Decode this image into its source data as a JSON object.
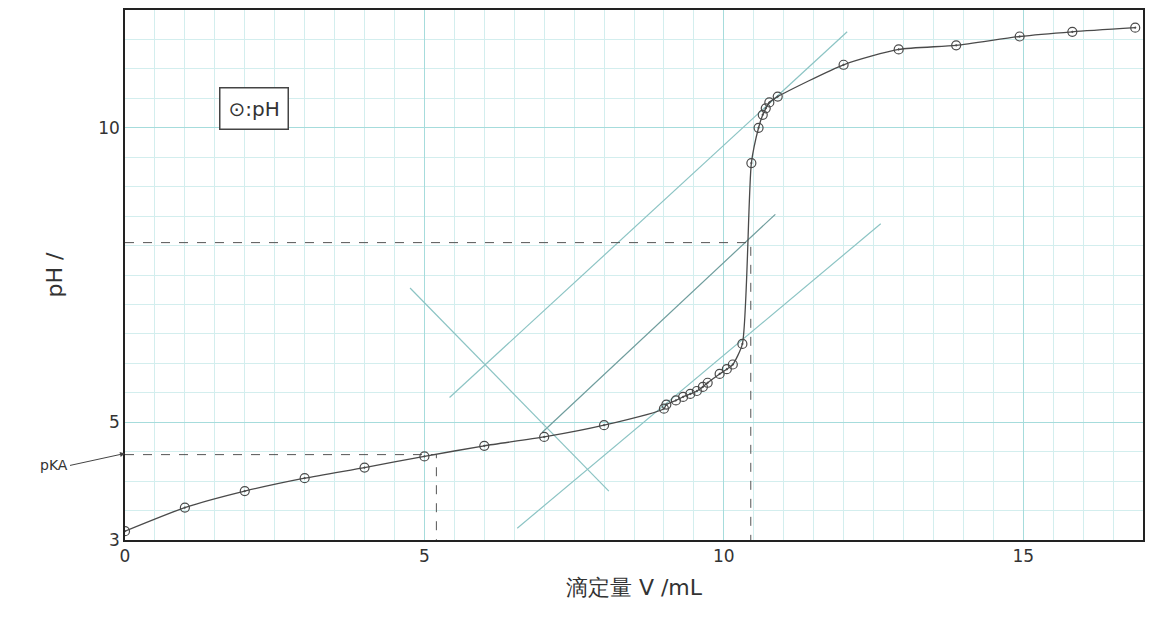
{
  "chart_data": {
    "type": "line",
    "x_label": "滴定量 V /mL",
    "y_label": "pH /",
    "x": [
      0,
      1,
      2,
      3,
      4,
      5,
      6,
      7,
      8,
      9,
      9.04,
      9.2,
      9.32,
      9.44,
      9.55,
      9.65,
      9.73,
      9.93,
      10.05,
      10.15,
      10.31,
      10.46,
      10.58,
      10.65,
      10.7,
      10.76,
      10.9,
      12,
      12.92,
      13.88,
      14.94,
      15.82,
      16.87
    ],
    "values": [
      3.15,
      3.55,
      3.83,
      4.05,
      4.23,
      4.42,
      4.6,
      4.75,
      4.95,
      5.23,
      5.3,
      5.37,
      5.43,
      5.48,
      5.53,
      5.6,
      5.67,
      5.82,
      5.9,
      5.98,
      6.33,
      9.4,
      10.0,
      10.22,
      10.33,
      10.43,
      10.53,
      11.07,
      11.33,
      11.4,
      11.55,
      11.63,
      11.7
    ],
    "color": "#4a4a4a",
    "marker": "circle-open-dot",
    "line_style": "solid",
    "xlim": [
      0,
      17
    ],
    "ylim": [
      3,
      12
    ],
    "xticks": [
      0,
      5,
      10,
      15
    ],
    "yticks": [
      3,
      5,
      10
    ],
    "grid": true,
    "reference_points": [
      {
        "x": 5.2,
        "y": 4.45
      },
      {
        "x": 10.45,
        "y": 8.05
      }
    ],
    "construction_lines": [
      {
        "x": [
          5.42,
          12.06
        ],
        "y": [
          5.42,
          11.63
        ]
      },
      {
        "x": [
          6.97,
          10.86
        ],
        "y": [
          4.83,
          8.53
        ]
      },
      {
        "x": [
          6.55,
          12.62
        ],
        "y": [
          3.2,
          8.37
        ]
      },
      {
        "x": [
          4.76,
          8.08
        ],
        "y": [
          7.28,
          3.83
        ]
      }
    ],
    "annotations": [
      {
        "text": "⊙:pH",
        "x": 2.16,
        "y": 10.33
      },
      {
        "text": "pKA",
        "x": 0,
        "y": 4.47
      }
    ]
  }
}
